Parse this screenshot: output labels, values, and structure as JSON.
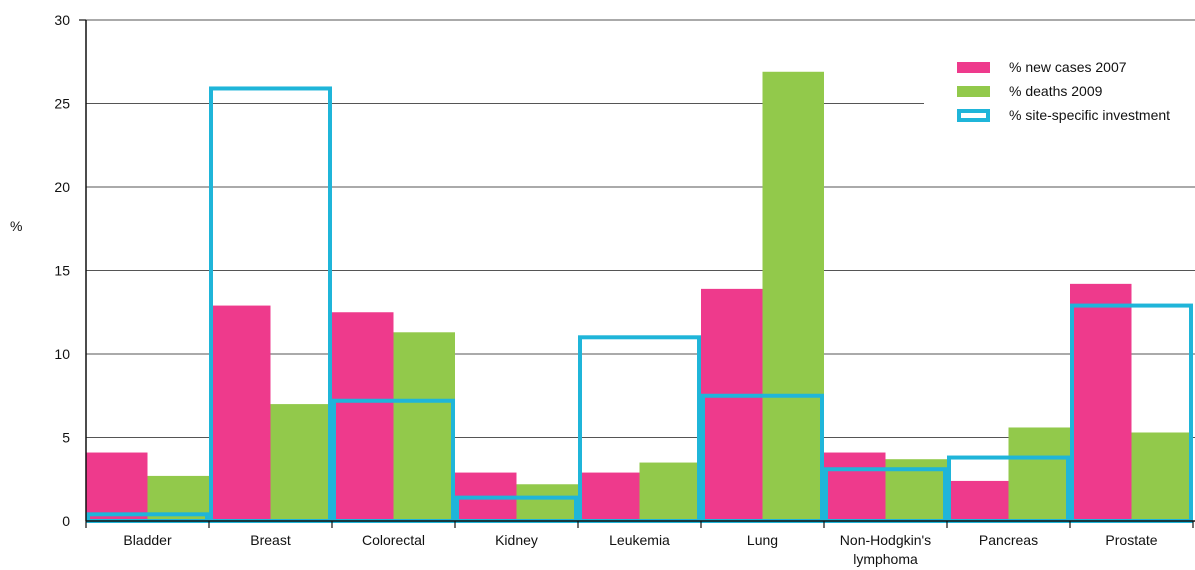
{
  "chart_data": {
    "type": "bar",
    "ylabel": "%",
    "ylim": [
      0,
      30
    ],
    "yticks": [
      0,
      5,
      10,
      15,
      20,
      25,
      30
    ],
    "grid": true,
    "legend_position": "top-right",
    "categories": [
      "Bladder",
      "Breast",
      "Colorectal",
      "Kidney",
      "Leukemia",
      "Lung",
      "Non-Hodgkin's lymphoma",
      "Pancreas",
      "Prostate"
    ],
    "category_lines": [
      [
        "Bladder"
      ],
      [
        "Breast"
      ],
      [
        "Colorectal"
      ],
      [
        "Kidney"
      ],
      [
        "Leukemia"
      ],
      [
        "Lung"
      ],
      [
        "Non-Hodgkin's",
        "lymphoma"
      ],
      [
        "Pancreas"
      ],
      [
        "Prostate"
      ]
    ],
    "series": [
      {
        "name": "% new cases 2007",
        "style": "bar",
        "color": "#ee3a8c",
        "values": [
          4.1,
          12.9,
          12.5,
          2.9,
          2.9,
          13.9,
          4.1,
          2.4,
          14.2
        ]
      },
      {
        "name": "% deaths 2009",
        "style": "bar",
        "color": "#92c94b",
        "values": [
          2.7,
          7.0,
          11.3,
          2.2,
          3.5,
          26.9,
          3.7,
          5.6,
          5.3
        ]
      },
      {
        "name": "% site-specific investment",
        "style": "outline",
        "color": "#1fb5d9",
        "values": [
          0.4,
          25.9,
          7.2,
          1.4,
          11.0,
          7.5,
          3.1,
          3.8,
          12.9
        ]
      }
    ]
  }
}
